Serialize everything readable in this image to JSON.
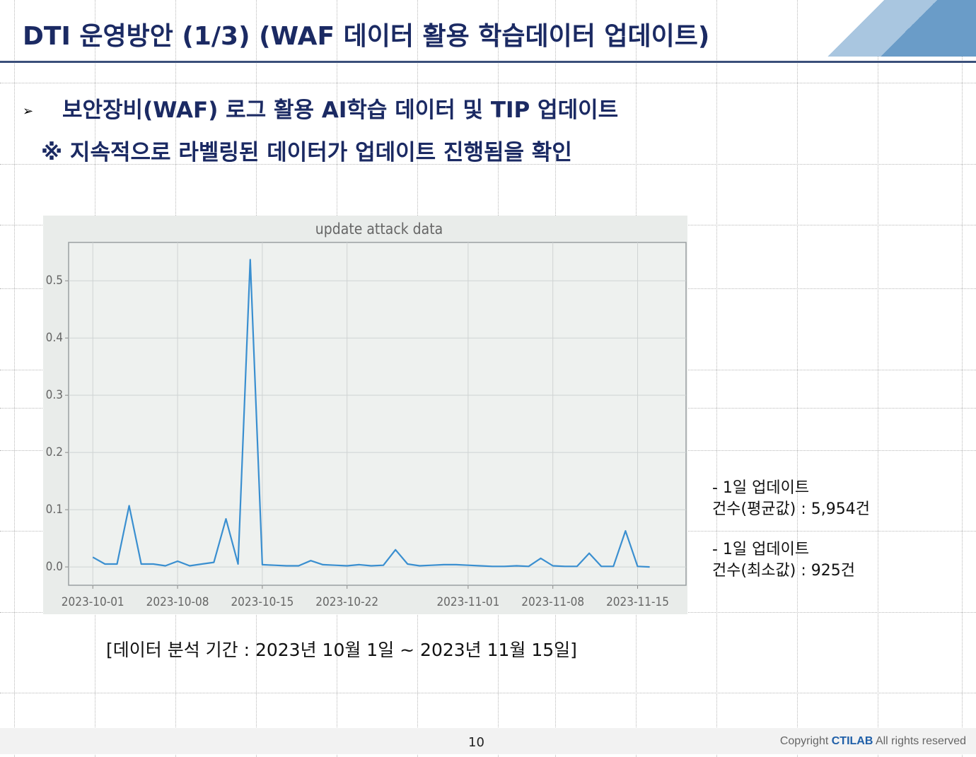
{
  "header": {
    "title": "DTI 운영방안 (1/3) (WAF 데이터 활용 학습데이터 업데이트)"
  },
  "bullets": {
    "main": "보안장비(WAF) 로그 활용 AI학습 데이터 및 TIP 업데이트",
    "note": "※ 지속적으로 라벨링된 데이터가 업데이트 진행됨을 확인"
  },
  "chart_data": {
    "type": "line",
    "title": "update attack data",
    "color": "#3a8fd0",
    "grid": true,
    "x": [
      "2023-10-01",
      "2023-10-02",
      "2023-10-03",
      "2023-10-04",
      "2023-10-05",
      "2023-10-06",
      "2023-10-07",
      "2023-10-08",
      "2023-10-09",
      "2023-10-10",
      "2023-10-11",
      "2023-10-12",
      "2023-10-13",
      "2023-10-14",
      "2023-10-15",
      "2023-10-16",
      "2023-10-17",
      "2023-10-18",
      "2023-10-19",
      "2023-10-20",
      "2023-10-21",
      "2023-10-22",
      "2023-10-23",
      "2023-10-24",
      "2023-10-25",
      "2023-10-26",
      "2023-10-27",
      "2023-10-28",
      "2023-10-29",
      "2023-10-30",
      "2023-10-31",
      "2023-11-01",
      "2023-11-02",
      "2023-11-03",
      "2023-11-04",
      "2023-11-05",
      "2023-11-06",
      "2023-11-07",
      "2023-11-08",
      "2023-11-09",
      "2023-11-10",
      "2023-11-11",
      "2023-11-12",
      "2023-11-13",
      "2023-11-14",
      "2023-11-15",
      "2023-11-16"
    ],
    "values": [
      0.017,
      0.005,
      0.005,
      0.107,
      0.005,
      0.005,
      0.002,
      0.01,
      0.002,
      0.005,
      0.008,
      0.084,
      0.005,
      0.537,
      0.004,
      0.003,
      0.002,
      0.002,
      0.011,
      0.004,
      0.003,
      0.002,
      0.004,
      0.002,
      0.003,
      0.03,
      0.005,
      0.002,
      0.003,
      0.004,
      0.004,
      0.003,
      0.002,
      0.001,
      0.001,
      0.002,
      0.001,
      0.015,
      0.002,
      0.001,
      0.001,
      0.024,
      0.001,
      0.001,
      0.063,
      0.001,
      0
    ],
    "xlim": [
      "2023-09-29",
      "2023-11-19"
    ],
    "xticks": [
      "2023-10-01",
      "2023-10-08",
      "2023-10-15",
      "2023-10-22",
      "2023-11-01",
      "2023-11-08",
      "2023-11-15"
    ],
    "ylim": [
      -0.032,
      0.567
    ],
    "yticks": [
      {
        "value": 0,
        "label": "0.0"
      },
      0.1,
      0.2,
      0.3,
      0.4,
      0.5
    ]
  },
  "side_notes": [
    {
      "line1": "- 1일 업데이트",
      "line2": "건수(평균값) : 5,954건"
    },
    {
      "line1": "- 1일 업데이트",
      "line2": "건수(최소값) : 925건"
    }
  ],
  "caption": "[데이터 분석 기간 : 2023년 10월 1일 ~ 2023년 11월 15일]",
  "footer": {
    "page": "10",
    "copyright_pre": "Copyright ",
    "copyright_brand": "CTILAB",
    "copyright_post": " All rights reserved"
  }
}
